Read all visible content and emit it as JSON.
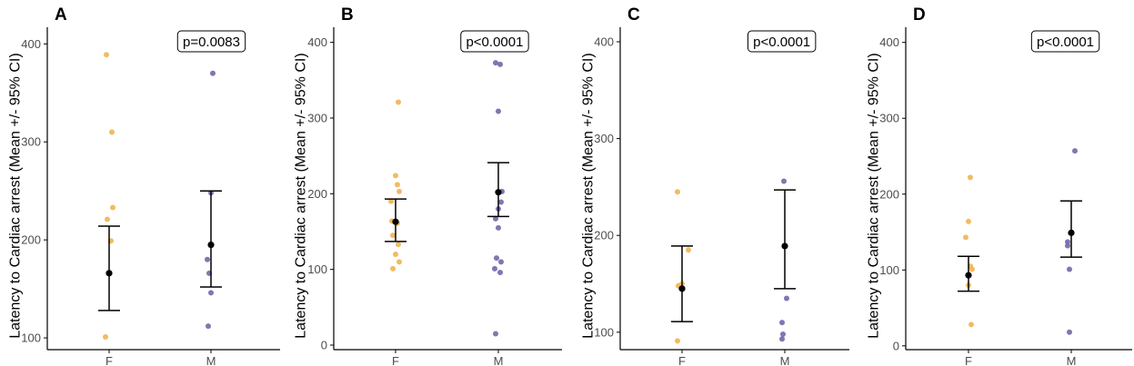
{
  "colors": {
    "female": "#F0B452",
    "male": "#7466A8",
    "mean": "#000000",
    "axis": "#000000"
  },
  "chart_data": [
    {
      "type": "scatter",
      "panel_label": "A",
      "title": "",
      "xlabel": "",
      "ylabel": "Latency to Cardiac arrest (Mean +/- 95% CI)",
      "categories": [
        "F",
        "M"
      ],
      "yticks": [
        100,
        200,
        300,
        400
      ],
      "ylim": [
        88,
        417
      ],
      "annotation": "p=0.0083",
      "series": [
        {
          "name": "F",
          "values": [
            389,
            310,
            233,
            221,
            199,
            101
          ],
          "mean": 166,
          "ci": [
            128,
            214
          ]
        },
        {
          "name": "M",
          "values": [
            370,
            248,
            180,
            166,
            146,
            112
          ],
          "mean": 195,
          "ci": [
            152,
            250
          ]
        }
      ]
    },
    {
      "type": "scatter",
      "panel_label": "B",
      "title": "",
      "xlabel": "",
      "ylabel": "Latency to Cardiac arrest (Mean +/- 95% CI)",
      "categories": [
        "F",
        "M"
      ],
      "yticks": [
        0,
        100,
        200,
        300,
        400
      ],
      "ylim": [
        -6,
        420
      ],
      "annotation": "p<0.0001",
      "series": [
        {
          "name": "F",
          "values": [
            321,
            224,
            212,
            203,
            190,
            164,
            161,
            145,
            133,
            120,
            110,
            101
          ],
          "mean": 163,
          "ci": [
            137,
            193
          ]
        },
        {
          "name": "M",
          "values": [
            373,
            371,
            309,
            203,
            189,
            180,
            167,
            155,
            115,
            110,
            101,
            96,
            15
          ],
          "mean": 202,
          "ci": [
            170,
            241
          ]
        }
      ]
    },
    {
      "type": "scatter",
      "panel_label": "C",
      "title": "",
      "xlabel": "",
      "ylabel": "Latency to Cardiac arrest (Mean +/- 95% CI)",
      "categories": [
        "F",
        "M"
      ],
      "yticks": [
        100,
        200,
        300,
        400
      ],
      "ylim": [
        82,
        415
      ],
      "annotation": "p<0.0001",
      "series": [
        {
          "name": "F",
          "values": [
            245,
            185,
            150,
            148,
            91
          ],
          "mean": 145,
          "ci": [
            111,
            189
          ]
        },
        {
          "name": "M",
          "values": [
            256,
            135,
            110,
            98,
            93
          ],
          "mean": 189,
          "ci": [
            145,
            247
          ]
        }
      ]
    },
    {
      "type": "scatter",
      "panel_label": "D",
      "title": "",
      "xlabel": "",
      "ylabel": "Latency to Cardiac arrest (Mean +/- 95% CI)",
      "categories": [
        "F",
        "M"
      ],
      "yticks": [
        0,
        100,
        200,
        300,
        400
      ],
      "ylim": [
        -5,
        420
      ],
      "annotation": "p<0.0001",
      "series": [
        {
          "name": "F",
          "values": [
            222,
            164,
            143,
            105,
            101,
            80,
            28
          ],
          "mean": 93,
          "ci": [
            72,
            118
          ]
        },
        {
          "name": "M",
          "values": [
            257,
            137,
            132,
            101,
            18
          ],
          "mean": 149,
          "ci": [
            117,
            191
          ]
        }
      ]
    }
  ]
}
